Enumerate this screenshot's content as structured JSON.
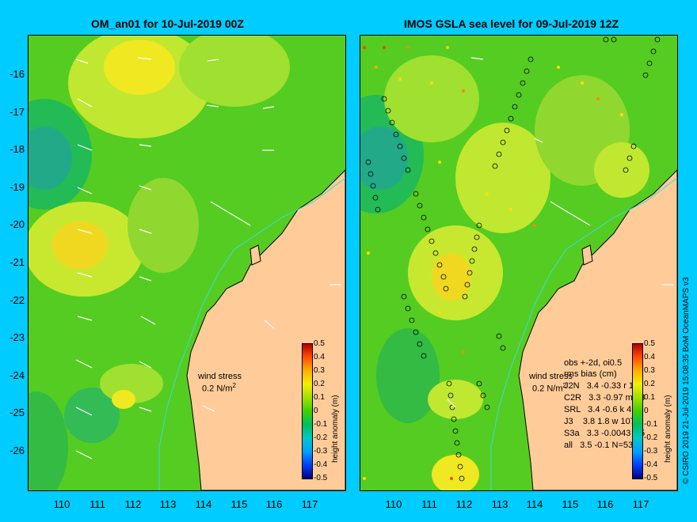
{
  "left_panel": {
    "title": "OM_an01 for 10-Jul-2019 00Z",
    "wind_label": "wind stress",
    "wind_value": "0.2 N/m",
    "wind_sup": "2"
  },
  "right_panel": {
    "title": "IMOS GSLA sea level  for 09-Jul-2019 12Z",
    "wind_label": "wind stress",
    "wind_value": "0.2 N/m",
    "wind_sup": "2",
    "stats": {
      "line1": "obs +-2d, oi0.5",
      "line2": "rms  bias (cm)",
      "rows": [
        "J2N   3.4 -0.33 r 100",
        "C2R   3.3 -0.97 m 18",
        "SRL   3.4 -0.6 k 49",
        "J3    3.8 1.8 w 107",
        "S3a   3.3 -0.0043 c 5",
        "all   3.5 -0.1 N=539"
      ]
    }
  },
  "y_ticks": [
    "-16",
    "-17",
    "-18",
    "-19",
    "-20",
    "-21",
    "-22",
    "-23",
    "-24",
    "-25",
    "-26"
  ],
  "x_ticks": [
    "110",
    "111",
    "112",
    "113",
    "114",
    "115",
    "116",
    "117"
  ],
  "colorbar": {
    "ticks": [
      "0.5",
      "0.4",
      "0.3",
      "0.2",
      "0.1",
      "0",
      "-0.1",
      "-0.2",
      "-0.3",
      "-0.4",
      "-0.5"
    ],
    "label": "height anomaly (m)"
  },
  "side_text": "© CSIRO 2019    21-Jul-2019 15:08:35 BoM OceanMAPS v3",
  "colors": {
    "background": "#00ccff",
    "land": "#ffcc99",
    "sea_base": "#55cc22",
    "coastline": "#000000",
    "isobath": "#33dddd"
  }
}
